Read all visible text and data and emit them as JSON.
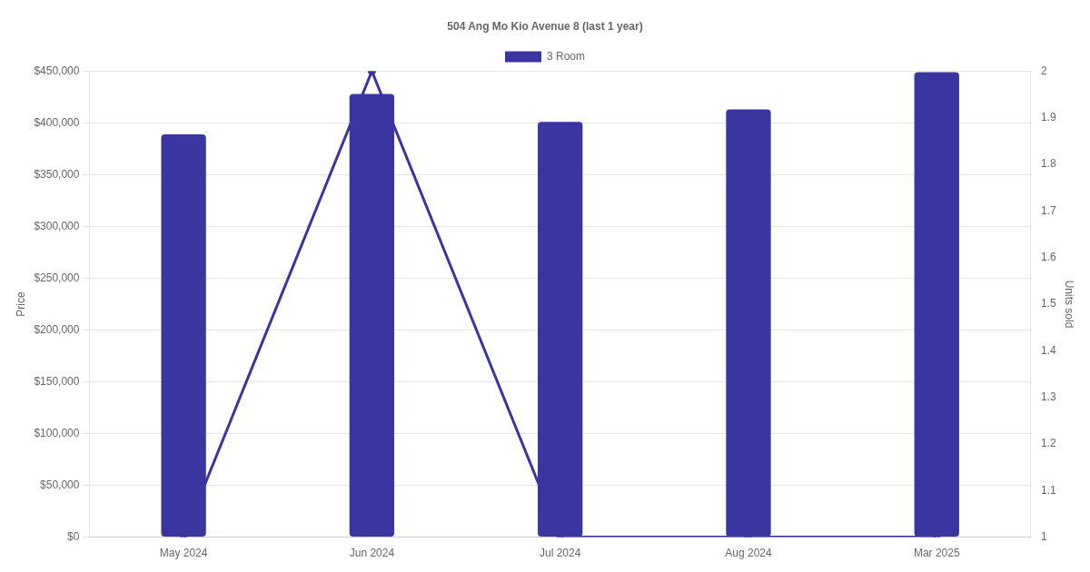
{
  "chart_data": {
    "type": "bar",
    "title": "504 Ang Mo Kio Avenue 8 (last 1 year)",
    "categories": [
      "May 2024",
      "Jun 2024",
      "Jul 2024",
      "Aug 2024",
      "Mar 2025"
    ],
    "series": [
      {
        "name": "3 Room",
        "color": "#3a35a0",
        "values": [
          389000,
          428000,
          401000,
          413000,
          449000
        ]
      },
      {
        "type": "line",
        "axis": "y2",
        "color": "#3a35a0",
        "values": [
          1,
          2,
          1,
          1,
          1
        ]
      }
    ],
    "ylabel": "Price",
    "y2label": "Units sold",
    "ylim": [
      0,
      450000
    ],
    "yticks": [
      {
        "value": 0,
        "label": "$0"
      },
      {
        "value": 50000,
        "label": "$50,000"
      },
      {
        "value": 100000,
        "label": "$100,000"
      },
      {
        "value": 150000,
        "label": "$150,000"
      },
      {
        "value": 200000,
        "label": "$200,000"
      },
      {
        "value": 250000,
        "label": "$250,000"
      },
      {
        "value": 300000,
        "label": "$300,000"
      },
      {
        "value": 350000,
        "label": "$350,000"
      },
      {
        "value": 400000,
        "label": "$400,000"
      },
      {
        "value": 450000,
        "label": "$450,000"
      }
    ],
    "y2lim": [
      1,
      2
    ],
    "y2ticks": [
      1,
      1.1,
      1.2,
      1.3,
      1.4,
      1.5,
      1.6,
      1.7,
      1.8,
      1.9,
      2
    ],
    "grid": "y",
    "legend": "top",
    "marker": "circle",
    "line_style": "solid"
  }
}
